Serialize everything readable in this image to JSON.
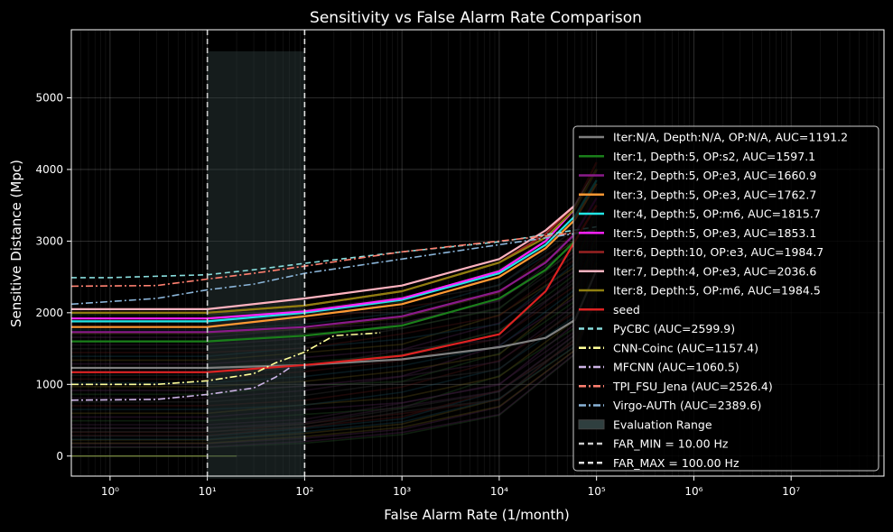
{
  "chart_data": {
    "type": "line",
    "title": "Sensitivity vs False Alarm Rate Comparison",
    "xlabel": "False Alarm Rate (1/month)",
    "ylabel": "Sensitive Distance (Mpc)",
    "xscale": "log",
    "xlim": [
      0.4,
      90000000
    ],
    "ylim": [
      -280,
      5950
    ],
    "xticks": [
      {
        "v": 1,
        "l": "10⁰"
      },
      {
        "v": 10,
        "l": "10¹"
      },
      {
        "v": 100,
        "l": "10²"
      },
      {
        "v": 1000,
        "l": "10³"
      },
      {
        "v": 10000,
        "l": "10⁴"
      },
      {
        "v": 100000,
        "l": "10⁵"
      },
      {
        "v": 1000000,
        "l": "10⁶"
      },
      {
        "v": 10000000,
        "l": "10⁷"
      }
    ],
    "yticks": [
      0,
      1000,
      2000,
      3000,
      4000,
      5000
    ],
    "grid": true,
    "legend_position": "right",
    "evaluation_range": {
      "label": "Evaluation Range",
      "x0": 10,
      "x1": 100,
      "ymax": 5650,
      "color": "#2f3f3f"
    },
    "vlines": [
      {
        "label": "FAR_MIN = 10.00 Hz",
        "x": 10,
        "color": "#cccccc"
      },
      {
        "label": "FAR_MAX = 100.00 Hz",
        "x": 100,
        "color": "#e0e0e0"
      }
    ],
    "series": [
      {
        "name": "Iter:N/A, Depth:N/A, OP:N/A, AUC=1191.2",
        "color": "#7f7f7f",
        "dash": "solid",
        "width": 2.2,
        "points": [
          [
            0.4,
            1230
          ],
          [
            10,
            1230
          ],
          [
            100,
            1270
          ],
          [
            1000,
            1350
          ],
          [
            10000,
            1520
          ],
          [
            30000,
            1650
          ],
          [
            60000,
            1900
          ],
          [
            100000,
            2600
          ]
        ]
      },
      {
        "name": "Iter:1, Depth:5, OP:s2, AUC=1597.1",
        "color": "#1a7f1a",
        "dash": "solid",
        "width": 2.2,
        "points": [
          [
            0.4,
            1600
          ],
          [
            10,
            1600
          ],
          [
            100,
            1680
          ],
          [
            1000,
            1820
          ],
          [
            10000,
            2200
          ],
          [
            30000,
            2600
          ],
          [
            60000,
            3000
          ],
          [
            100000,
            3500
          ]
        ]
      },
      {
        "name": "Iter:2, Depth:5, OP:e3, AUC=1660.9",
        "color": "#8a1a8a",
        "dash": "solid",
        "width": 2.2,
        "points": [
          [
            0.4,
            1730
          ],
          [
            10,
            1730
          ],
          [
            100,
            1800
          ],
          [
            1000,
            1950
          ],
          [
            10000,
            2300
          ],
          [
            30000,
            2700
          ],
          [
            60000,
            3100
          ],
          [
            100000,
            3600
          ]
        ]
      },
      {
        "name": "Iter:3, Depth:5, OP:e3, AUC=1762.7",
        "color": "#ff9933",
        "dash": "solid",
        "width": 2.2,
        "points": [
          [
            0.4,
            1800
          ],
          [
            10,
            1800
          ],
          [
            100,
            1950
          ],
          [
            1000,
            2120
          ],
          [
            10000,
            2500
          ],
          [
            30000,
            2900
          ],
          [
            60000,
            3300
          ],
          [
            100000,
            3800
          ]
        ]
      },
      {
        "name": "Iter:4, Depth:5, OP:m6, AUC=1815.7",
        "color": "#22e5e5",
        "dash": "solid",
        "width": 2.2,
        "points": [
          [
            0.4,
            1880
          ],
          [
            10,
            1880
          ],
          [
            100,
            2000
          ],
          [
            1000,
            2180
          ],
          [
            10000,
            2550
          ],
          [
            30000,
            2950
          ],
          [
            60000,
            3350
          ],
          [
            100000,
            3850
          ]
        ]
      },
      {
        "name": "Iter:5, Depth:5, OP:e3, AUC=1853.1",
        "color": "#ff22ff",
        "dash": "solid",
        "width": 2.2,
        "points": [
          [
            0.4,
            1920
          ],
          [
            10,
            1920
          ],
          [
            100,
            2020
          ],
          [
            1000,
            2200
          ],
          [
            10000,
            2580
          ],
          [
            30000,
            3000
          ],
          [
            60000,
            3450
          ],
          [
            100000,
            4000
          ]
        ]
      },
      {
        "name": "Iter:6, Depth:10, OP:e3, AUC=1984.7",
        "color": "#992222",
        "dash": "solid",
        "width": 2.2,
        "points": [
          [
            0.4,
            2000
          ],
          [
            10,
            2000
          ],
          [
            100,
            2100
          ],
          [
            1000,
            2300
          ],
          [
            10000,
            2700
          ],
          [
            30000,
            3100
          ],
          [
            60000,
            3500
          ],
          [
            100000,
            4100
          ]
        ]
      },
      {
        "name": "Iter:7, Depth:4, OP:e3, AUC=2036.6",
        "color": "#ffb3c0",
        "dash": "solid",
        "width": 2.2,
        "points": [
          [
            0.4,
            2050
          ],
          [
            10,
            2050
          ],
          [
            100,
            2200
          ],
          [
            1000,
            2380
          ],
          [
            10000,
            2750
          ],
          [
            30000,
            3150
          ],
          [
            60000,
            3500
          ],
          [
            100000,
            4000
          ]
        ]
      },
      {
        "name": "Iter:8, Depth:5, OP:m6, AUC=1984.5",
        "color": "#8f7f10",
        "dash": "solid",
        "width": 2.2,
        "points": [
          [
            0.4,
            2000
          ],
          [
            10,
            2000
          ],
          [
            100,
            2100
          ],
          [
            1000,
            2300
          ],
          [
            10000,
            2700
          ],
          [
            30000,
            3050
          ],
          [
            60000,
            3450
          ],
          [
            100000,
            4000
          ]
        ]
      },
      {
        "name": "seed",
        "color": "#dd2222",
        "dash": "solid",
        "width": 2.2,
        "points": [
          [
            0.4,
            1170
          ],
          [
            10,
            1170
          ],
          [
            100,
            1270
          ],
          [
            1000,
            1400
          ],
          [
            10000,
            1700
          ],
          [
            30000,
            2300
          ],
          [
            60000,
            3000
          ],
          [
            100000,
            3500
          ]
        ]
      },
      {
        "name": "PyCBC (AUC=2599.9)",
        "color": "#88dddd",
        "dash": "dashed",
        "width": 1.6,
        "points": [
          [
            0.4,
            2490
          ],
          [
            1,
            2490
          ],
          [
            10,
            2530
          ],
          [
            30,
            2600
          ],
          [
            100,
            2690
          ],
          [
            1000,
            2850
          ],
          [
            10000,
            2990
          ],
          [
            100000,
            3200
          ]
        ]
      },
      {
        "name": "CNN-Coinc (AUC=1157.4)",
        "color": "#ffff99",
        "dash": "dashdot",
        "width": 1.6,
        "points": [
          [
            0.4,
            1000
          ],
          [
            3,
            1000
          ],
          [
            10,
            1050
          ],
          [
            30,
            1150
          ],
          [
            50,
            1300
          ],
          [
            100,
            1450
          ],
          [
            200,
            1680
          ],
          [
            600,
            1720
          ]
        ]
      },
      {
        "name": "MFCNN (AUC=1060.5)",
        "color": "#ccb3e5",
        "dash": "dashdot",
        "width": 1.6,
        "points": [
          [
            0.4,
            780
          ],
          [
            3,
            790
          ],
          [
            10,
            860
          ],
          [
            30,
            950
          ],
          [
            50,
            1100
          ],
          [
            70,
            1230
          ]
        ]
      },
      {
        "name": "TPI_FSU_Jena (AUC=2526.4)",
        "color": "#ff8070",
        "dash": "dashdot",
        "width": 1.6,
        "points": [
          [
            0.4,
            2370
          ],
          [
            3,
            2380
          ],
          [
            10,
            2470
          ],
          [
            30,
            2550
          ],
          [
            100,
            2650
          ],
          [
            1000,
            2850
          ],
          [
            10000,
            3000
          ],
          [
            100000,
            3150
          ]
        ]
      },
      {
        "name": "Virgo-AUTh (AUC=2389.6)",
        "color": "#8ab4d8",
        "dash": "dashdot",
        "width": 1.6,
        "points": [
          [
            0.4,
            2120
          ],
          [
            3,
            2200
          ],
          [
            10,
            2320
          ],
          [
            30,
            2400
          ],
          [
            100,
            2550
          ],
          [
            1000,
            2750
          ],
          [
            10000,
            2950
          ],
          [
            100000,
            3150
          ]
        ]
      }
    ]
  }
}
